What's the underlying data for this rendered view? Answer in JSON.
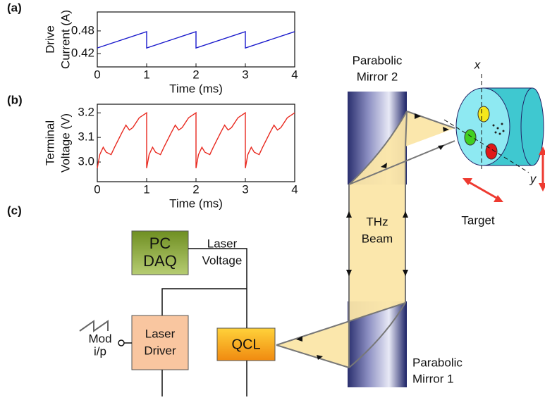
{
  "chart_data": [
    {
      "type": "line",
      "panel": "(a)",
      "ylabel": [
        "Drive",
        "Current (A)"
      ],
      "xlabel": "Time (ms)",
      "xlim": [
        0,
        4
      ],
      "xticks": [
        0,
        1,
        2,
        3,
        4
      ],
      "ylim": [
        0.385,
        0.53
      ],
      "yticks": [
        0.42,
        0.48
      ],
      "series": [
        {
          "color": "#1a1acc",
          "x": [
            0,
            1,
            1,
            2,
            2,
            3,
            3,
            4
          ],
          "values": [
            0.435,
            0.478,
            0.435,
            0.478,
            0.435,
            0.478,
            0.435,
            0.478
          ]
        }
      ]
    },
    {
      "type": "line",
      "panel": "(b)",
      "ylabel": [
        "Terminal",
        "Voltage (V)"
      ],
      "xlabel": "Time (ms)",
      "xlim": [
        0,
        4
      ],
      "xticks": [
        0,
        1,
        2,
        3,
        4
      ],
      "ylim": [
        2.92,
        3.235
      ],
      "yticks": [
        {
          "value": 3,
          "label": "3.0"
        },
        3.1,
        3.2
      ],
      "series": [
        {
          "color": "#e8281e",
          "x": [
            0,
            0.05,
            0.12,
            0.18,
            0.28,
            0.35,
            0.5,
            0.58,
            0.65,
            0.72,
            0.85,
            1,
            1,
            1.05,
            1.12,
            1.18,
            1.28,
            1.35,
            1.5,
            1.58,
            1.65,
            1.72,
            1.85,
            2,
            2,
            2.05,
            2.12,
            2.18,
            2.28,
            2.35,
            2.5,
            2.58,
            2.65,
            2.72,
            2.85,
            3,
            3,
            3.05,
            3.12,
            3.18,
            3.28,
            3.35,
            3.5,
            3.58,
            3.65,
            3.72,
            3.85,
            4
          ],
          "values": [
            2.975,
            3.03,
            3.06,
            3.04,
            3.03,
            3.06,
            3.12,
            3.15,
            3.13,
            3.14,
            3.18,
            3.2,
            2.975,
            3.03,
            3.06,
            3.04,
            3.03,
            3.06,
            3.12,
            3.15,
            3.13,
            3.14,
            3.18,
            3.2,
            2.975,
            3.03,
            3.06,
            3.04,
            3.03,
            3.06,
            3.12,
            3.15,
            3.13,
            3.14,
            3.18,
            3.2,
            2.975,
            3.03,
            3.06,
            3.04,
            3.03,
            3.06,
            3.12,
            3.15,
            3.13,
            3.14,
            3.18,
            3.2
          ]
        }
      ]
    }
  ],
  "diagram": {
    "panel": "(c)",
    "mirror_top": [
      "Parabolic",
      "Mirror 2"
    ],
    "mirror_bottom": [
      "Parabolic",
      "Mirror 1"
    ],
    "beam": [
      "THz",
      "Beam"
    ],
    "target": "Target",
    "axis_x": "x",
    "axis_y": "y",
    "daq": [
      "PC",
      "DAQ"
    ],
    "voltage": [
      "Laser",
      "Voltage"
    ],
    "driver": [
      "Laser",
      "Driver"
    ],
    "qcl": "QCL",
    "mod": [
      "Mod",
      "i/p"
    ]
  }
}
